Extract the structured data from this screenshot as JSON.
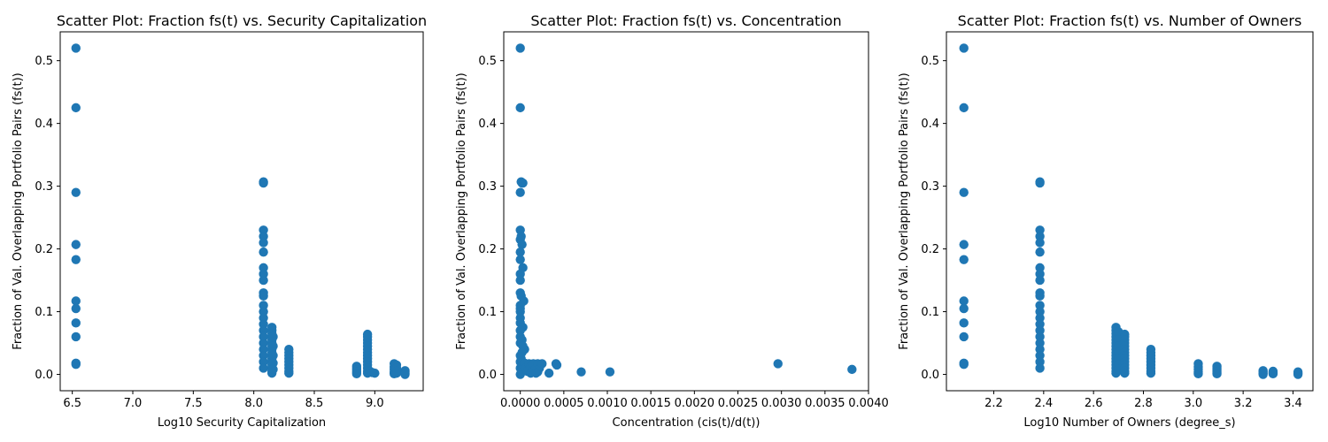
{
  "chart_data": [
    {
      "type": "scatter",
      "title": "Scatter Plot: Fraction fs(t) vs. Security Capitalization",
      "xlabel": "Log10 Security Capitalization",
      "ylabel": "Fraction of Val. Overlapping Portfolio Pairs (fs(t))",
      "xlim": [
        6.4,
        9.4
      ],
      "ylim": [
        -0.026,
        0.546
      ],
      "xticks": [
        6.5,
        7.0,
        7.5,
        8.0,
        8.5,
        9.0
      ],
      "xtick_labels": [
        "6.5",
        "7.0",
        "7.5",
        "8.0",
        "8.5",
        "9.0"
      ],
      "yticks": [
        0.0,
        0.1,
        0.2,
        0.3,
        0.4,
        0.5
      ],
      "ytick_labels": [
        "0.0",
        "0.1",
        "0.2",
        "0.3",
        "0.4",
        "0.5"
      ],
      "color": "#1f77b4",
      "points": [
        [
          6.53,
          0.52
        ],
        [
          6.53,
          0.425
        ],
        [
          6.53,
          0.29
        ],
        [
          6.53,
          0.207
        ],
        [
          6.53,
          0.183
        ],
        [
          6.53,
          0.117
        ],
        [
          6.53,
          0.105
        ],
        [
          6.53,
          0.082
        ],
        [
          6.53,
          0.06
        ],
        [
          6.53,
          0.018
        ],
        [
          6.53,
          0.016
        ],
        [
          8.08,
          0.307
        ],
        [
          8.08,
          0.305
        ],
        [
          8.08,
          0.23
        ],
        [
          8.08,
          0.22
        ],
        [
          8.08,
          0.21
        ],
        [
          8.08,
          0.195
        ],
        [
          8.08,
          0.17
        ],
        [
          8.08,
          0.16
        ],
        [
          8.08,
          0.15
        ],
        [
          8.08,
          0.13
        ],
        [
          8.08,
          0.125
        ],
        [
          8.08,
          0.11
        ],
        [
          8.08,
          0.1
        ],
        [
          8.08,
          0.09
        ],
        [
          8.08,
          0.08
        ],
        [
          8.08,
          0.07
        ],
        [
          8.08,
          0.06
        ],
        [
          8.08,
          0.05
        ],
        [
          8.08,
          0.04
        ],
        [
          8.08,
          0.03
        ],
        [
          8.08,
          0.02
        ],
        [
          8.08,
          0.01
        ],
        [
          8.15,
          0.075
        ],
        [
          8.15,
          0.07
        ],
        [
          8.15,
          0.065
        ],
        [
          8.15,
          0.06
        ],
        [
          8.15,
          0.055
        ],
        [
          8.15,
          0.05
        ],
        [
          8.15,
          0.045
        ],
        [
          8.15,
          0.04
        ],
        [
          8.15,
          0.035
        ],
        [
          8.15,
          0.03
        ],
        [
          8.15,
          0.025
        ],
        [
          8.15,
          0.02
        ],
        [
          8.15,
          0.015
        ],
        [
          8.15,
          0.01
        ],
        [
          8.15,
          0.005
        ],
        [
          8.15,
          0.002
        ],
        [
          8.16,
          0.06
        ],
        [
          8.16,
          0.045
        ],
        [
          8.16,
          0.03
        ],
        [
          8.16,
          0.018
        ],
        [
          8.16,
          0.008
        ],
        [
          8.29,
          0.04
        ],
        [
          8.29,
          0.035
        ],
        [
          8.29,
          0.03
        ],
        [
          8.29,
          0.025
        ],
        [
          8.29,
          0.02
        ],
        [
          8.29,
          0.015
        ],
        [
          8.29,
          0.01
        ],
        [
          8.29,
          0.005
        ],
        [
          8.29,
          0.002
        ],
        [
          8.85,
          0.013
        ],
        [
          8.85,
          0.01
        ],
        [
          8.85,
          0.007
        ],
        [
          8.85,
          0.004
        ],
        [
          8.85,
          0.001
        ],
        [
          8.94,
          0.064
        ],
        [
          8.94,
          0.06
        ],
        [
          8.94,
          0.055
        ],
        [
          8.94,
          0.05
        ],
        [
          8.94,
          0.045
        ],
        [
          8.94,
          0.04
        ],
        [
          8.94,
          0.035
        ],
        [
          8.94,
          0.03
        ],
        [
          8.94,
          0.025
        ],
        [
          8.94,
          0.02
        ],
        [
          8.94,
          0.015
        ],
        [
          8.94,
          0.01
        ],
        [
          8.94,
          0.005
        ],
        [
          8.94,
          0.002
        ],
        [
          8.96,
          0.005
        ],
        [
          8.98,
          0.003
        ],
        [
          9.0,
          0.002
        ],
        [
          9.16,
          0.017
        ],
        [
          9.16,
          0.012
        ],
        [
          9.16,
          0.008
        ],
        [
          9.16,
          0.004
        ],
        [
          9.16,
          0.001
        ],
        [
          9.18,
          0.015
        ],
        [
          9.18,
          0.01
        ],
        [
          9.18,
          0.005
        ],
        [
          9.18,
          0.002
        ],
        [
          9.25,
          0.006
        ],
        [
          9.25,
          0.004
        ],
        [
          9.25,
          0.002
        ],
        [
          9.25,
          0.0
        ]
      ]
    },
    {
      "type": "scatter",
      "title": "Scatter Plot: Fraction fs(t) vs. Concentration",
      "xlabel": "Concentration (cis(t)/d(t))",
      "ylabel": "Fraction of Val. Overlapping Portfolio Pairs (fs(t))",
      "xlim": [
        -0.00019,
        0.004
      ],
      "ylim": [
        -0.026,
        0.546
      ],
      "xticks": [
        0.0,
        0.0005,
        0.001,
        0.0015,
        0.002,
        0.0025,
        0.003,
        0.0035,
        0.004
      ],
      "xtick_labels": [
        "0.0000",
        "0.0005",
        "0.0010",
        "0.0015",
        "0.0020",
        "0.0025",
        "0.0030",
        "0.0035",
        "0.0040"
      ],
      "yticks": [
        0.0,
        0.1,
        0.2,
        0.3,
        0.4,
        0.5
      ],
      "ytick_labels": [
        "0.0",
        "0.1",
        "0.2",
        "0.3",
        "0.4",
        "0.5"
      ],
      "color": "#1f77b4",
      "points": [
        [
          0.0,
          0.52
        ],
        [
          0.0,
          0.425
        ],
        [
          1e-05,
          0.307
        ],
        [
          2e-05,
          0.305
        ],
        [
          3e-05,
          0.305
        ],
        [
          0.0,
          0.29
        ],
        [
          0.0,
          0.23
        ],
        [
          1e-05,
          0.22
        ],
        [
          0.0,
          0.215
        ],
        [
          2e-05,
          0.207
        ],
        [
          0.0,
          0.195
        ],
        [
          0.0,
          0.183
        ],
        [
          3e-05,
          0.17
        ],
        [
          0.0,
          0.16
        ],
        [
          0.0,
          0.15
        ],
        [
          0.0,
          0.13
        ],
        [
          1e-05,
          0.125
        ],
        [
          4e-05,
          0.117
        ],
        [
          0.0,
          0.11
        ],
        [
          0.0,
          0.105
        ],
        [
          0.0,
          0.1
        ],
        [
          0.0,
          0.09
        ],
        [
          0.0,
          0.082
        ],
        [
          3e-05,
          0.075
        ],
        [
          0.0,
          0.07
        ],
        [
          0.0,
          0.06
        ],
        [
          0.0,
          0.05
        ],
        [
          5e-05,
          0.04
        ],
        [
          0.0,
          0.03
        ],
        [
          0.0,
          0.02
        ],
        [
          0.0,
          0.01
        ],
        [
          0.0,
          0.0
        ],
        [
          2e-05,
          0.055
        ],
        [
          3e-05,
          0.045
        ],
        [
          2e-05,
          0.035
        ],
        [
          1e-05,
          0.025
        ],
        [
          3e-05,
          0.015
        ],
        [
          2e-05,
          0.008
        ],
        [
          1e-05,
          0.003
        ],
        [
          5e-05,
          0.018
        ],
        [
          6e-05,
          0.01
        ],
        [
          8e-05,
          0.005
        ],
        [
          0.0001,
          0.017
        ],
        [
          0.00012,
          0.012
        ],
        [
          0.00013,
          0.005
        ],
        [
          0.00015,
          0.017
        ],
        [
          0.00017,
          0.008
        ],
        [
          0.0002,
          0.017
        ],
        [
          0.0002,
          0.004
        ],
        [
          0.00022,
          0.01
        ],
        [
          0.00025,
          0.017
        ],
        [
          0.00018,
          0.002
        ],
        [
          0.00012,
          0.002
        ],
        [
          0.00033,
          0.002
        ],
        [
          0.00041,
          0.017
        ],
        [
          0.00042,
          0.015
        ],
        [
          0.0007,
          0.004
        ],
        [
          0.00103,
          0.004
        ],
        [
          0.00296,
          0.017
        ],
        [
          0.00381,
          0.008
        ]
      ]
    },
    {
      "type": "scatter",
      "title": "Scatter Plot: Fraction fs(t) vs. Number of Owners",
      "xlabel": "Log10 Number of Owners (degree_s)",
      "ylabel": "Fraction of Val. Overlapping Portfolio Pairs (fs(t))",
      "xlim": [
        2.01,
        3.48
      ],
      "ylim": [
        -0.026,
        0.546
      ],
      "xticks": [
        2.2,
        2.4,
        2.6,
        2.8,
        3.0,
        3.2,
        3.4
      ],
      "xtick_labels": [
        "2.2",
        "2.4",
        "2.6",
        "2.8",
        "3.0",
        "3.2",
        "3.4"
      ],
      "yticks": [
        0.0,
        0.1,
        0.2,
        0.3,
        0.4,
        0.5
      ],
      "ytick_labels": [
        "0.0",
        "0.1",
        "0.2",
        "0.3",
        "0.4",
        "0.5"
      ],
      "color": "#1f77b4",
      "points": [
        [
          2.08,
          0.52
        ],
        [
          2.08,
          0.425
        ],
        [
          2.08,
          0.29
        ],
        [
          2.08,
          0.207
        ],
        [
          2.08,
          0.183
        ],
        [
          2.08,
          0.117
        ],
        [
          2.08,
          0.105
        ],
        [
          2.08,
          0.082
        ],
        [
          2.08,
          0.06
        ],
        [
          2.08,
          0.018
        ],
        [
          2.08,
          0.016
        ],
        [
          2.385,
          0.307
        ],
        [
          2.385,
          0.305
        ],
        [
          2.385,
          0.23
        ],
        [
          2.385,
          0.22
        ],
        [
          2.385,
          0.21
        ],
        [
          2.385,
          0.195
        ],
        [
          2.385,
          0.17
        ],
        [
          2.385,
          0.16
        ],
        [
          2.385,
          0.15
        ],
        [
          2.385,
          0.13
        ],
        [
          2.385,
          0.125
        ],
        [
          2.385,
          0.11
        ],
        [
          2.385,
          0.1
        ],
        [
          2.385,
          0.09
        ],
        [
          2.385,
          0.08
        ],
        [
          2.385,
          0.07
        ],
        [
          2.385,
          0.06
        ],
        [
          2.385,
          0.05
        ],
        [
          2.385,
          0.04
        ],
        [
          2.385,
          0.03
        ],
        [
          2.385,
          0.02
        ],
        [
          2.385,
          0.01
        ],
        [
          2.69,
          0.075
        ],
        [
          2.69,
          0.07
        ],
        [
          2.69,
          0.065
        ],
        [
          2.69,
          0.06
        ],
        [
          2.69,
          0.055
        ],
        [
          2.69,
          0.05
        ],
        [
          2.69,
          0.045
        ],
        [
          2.69,
          0.04
        ],
        [
          2.69,
          0.035
        ],
        [
          2.69,
          0.03
        ],
        [
          2.69,
          0.025
        ],
        [
          2.69,
          0.02
        ],
        [
          2.69,
          0.015
        ],
        [
          2.69,
          0.01
        ],
        [
          2.69,
          0.005
        ],
        [
          2.69,
          0.002
        ],
        [
          2.7,
          0.068
        ],
        [
          2.7,
          0.055
        ],
        [
          2.7,
          0.045
        ],
        [
          2.7,
          0.035
        ],
        [
          2.7,
          0.025
        ],
        [
          2.7,
          0.015
        ],
        [
          2.7,
          0.008
        ],
        [
          2.725,
          0.064
        ],
        [
          2.725,
          0.06
        ],
        [
          2.725,
          0.055
        ],
        [
          2.725,
          0.05
        ],
        [
          2.725,
          0.045
        ],
        [
          2.725,
          0.04
        ],
        [
          2.725,
          0.035
        ],
        [
          2.725,
          0.03
        ],
        [
          2.725,
          0.025
        ],
        [
          2.725,
          0.02
        ],
        [
          2.725,
          0.015
        ],
        [
          2.725,
          0.01
        ],
        [
          2.725,
          0.005
        ],
        [
          2.725,
          0.002
        ],
        [
          2.83,
          0.04
        ],
        [
          2.83,
          0.035
        ],
        [
          2.83,
          0.03
        ],
        [
          2.83,
          0.025
        ],
        [
          2.83,
          0.02
        ],
        [
          2.83,
          0.015
        ],
        [
          2.83,
          0.01
        ],
        [
          2.83,
          0.005
        ],
        [
          2.83,
          0.002
        ],
        [
          3.02,
          0.017
        ],
        [
          3.02,
          0.012
        ],
        [
          3.02,
          0.008
        ],
        [
          3.02,
          0.004
        ],
        [
          3.02,
          0.001
        ],
        [
          3.095,
          0.013
        ],
        [
          3.095,
          0.01
        ],
        [
          3.095,
          0.007
        ],
        [
          3.095,
          0.004
        ],
        [
          3.095,
          0.001
        ],
        [
          3.28,
          0.006
        ],
        [
          3.28,
          0.004
        ],
        [
          3.28,
          0.002
        ],
        [
          3.28,
          0.0
        ],
        [
          3.32,
          0.005
        ],
        [
          3.32,
          0.003
        ],
        [
          3.32,
          0.001
        ],
        [
          3.42,
          0.004
        ],
        [
          3.42,
          0.002
        ],
        [
          3.42,
          0.0
        ]
      ]
    }
  ]
}
